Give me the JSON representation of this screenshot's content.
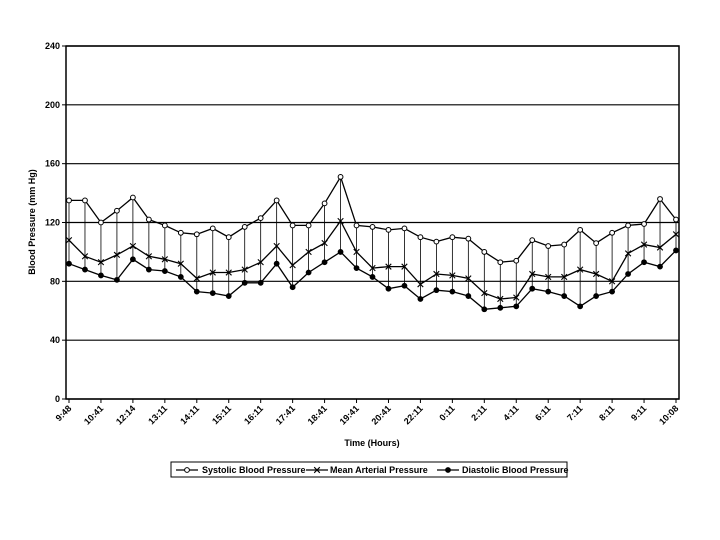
{
  "chart_data": {
    "type": "line",
    "title": "",
    "xlabel": "Time (Hours)",
    "ylabel": "Blood Pressure (mm Hg)",
    "ylim": [
      0,
      240
    ],
    "yticks": [
      0,
      40,
      80,
      120,
      160,
      200,
      240
    ],
    "grid": "horizontal",
    "legend_position": "bottom",
    "x_tick_labels": [
      "9:48",
      "10:41",
      "12:14",
      "13:11",
      "14:11",
      "15:11",
      "16:11",
      "17:41",
      "18:41",
      "19:41",
      "20:41",
      "22:11",
      "0:11",
      "2:11",
      "4:11",
      "6:11",
      "7:11",
      "8:11",
      "9:11",
      "10:08"
    ],
    "x_tick_index": [
      0,
      2,
      4,
      6,
      8,
      10,
      12,
      14,
      16,
      18,
      20,
      22,
      24,
      26,
      28,
      30,
      32,
      34,
      36,
      38
    ],
    "n_points": 39,
    "series": [
      {
        "name": "Systolic Blood Pressure",
        "marker": "circle-open",
        "values": [
          135,
          135,
          120,
          128,
          137,
          122,
          118,
          113,
          112,
          116,
          110,
          117,
          123,
          135,
          118,
          118,
          133,
          151,
          118,
          117,
          115,
          116,
          110,
          107,
          110,
          109,
          100,
          93,
          94,
          108,
          104,
          105,
          115,
          106,
          113,
          118,
          119,
          136,
          122
        ]
      },
      {
        "name": "Mean Arterial Pressure",
        "marker": "x",
        "values": [
          108,
          97,
          93,
          98,
          104,
          97,
          95,
          92,
          82,
          86,
          86,
          88,
          93,
          104,
          91,
          100,
          106,
          121,
          100,
          89,
          90,
          90,
          78,
          85,
          84,
          82,
          72,
          68,
          69,
          85,
          83,
          83,
          88,
          85,
          80,
          99,
          105,
          103,
          112
        ]
      },
      {
        "name": "Diastolic Blood Pressure",
        "marker": "circle-filled",
        "values": [
          92,
          88,
          84,
          81,
          95,
          88,
          87,
          83,
          73,
          72,
          70,
          79,
          79,
          92,
          76,
          86,
          93,
          100,
          89,
          83,
          75,
          77,
          68,
          74,
          73,
          70,
          61,
          62,
          63,
          75,
          73,
          70,
          63,
          70,
          73,
          85,
          93,
          90,
          101
        ]
      }
    ]
  }
}
